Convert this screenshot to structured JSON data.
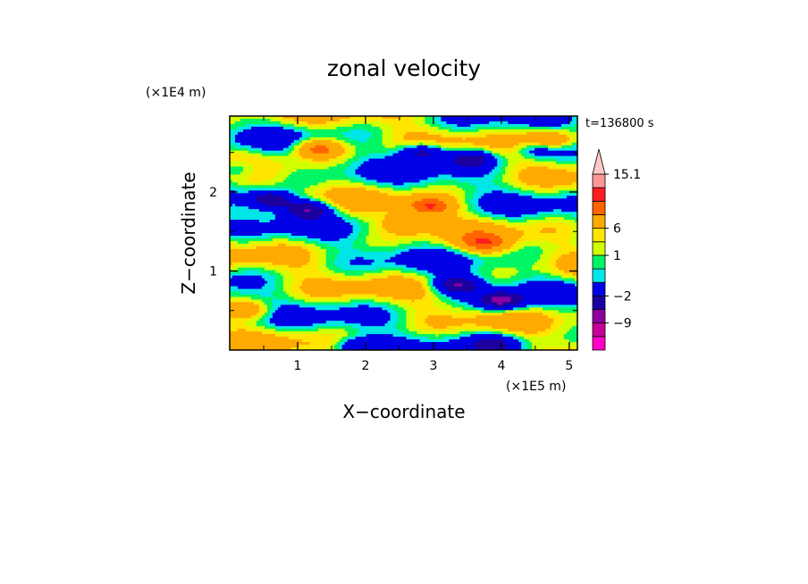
{
  "chart_data": {
    "type": "heatmap",
    "title": "zonal velocity",
    "xlabel": "X−coordinate",
    "ylabel": "Z−coordinate",
    "x_unit": "(×1E5 m)",
    "y_unit": "(×1E4 m)",
    "time_label": "t=136800 s",
    "xlim": [
      0,
      5.12
    ],
    "ylim": [
      0,
      2.96
    ],
    "xticks": [
      1,
      2,
      3,
      4,
      5
    ],
    "xtick_labels": [
      "1",
      "2",
      "3",
      "4",
      "5"
    ],
    "yticks": [
      1,
      2
    ],
    "ytick_labels": [
      "1",
      "2"
    ],
    "colorbar": {
      "levels": [
        -15,
        -12,
        -9,
        -6,
        -2,
        -1,
        0,
        1,
        2,
        6,
        9,
        12,
        15.1
      ],
      "colors": [
        "#ff00c8",
        "#c8009b",
        "#8c00a0",
        "#1e00a0",
        "#0000e6",
        "#00e6e6",
        "#00f564",
        "#d2ff00",
        "#ffe600",
        "#ffaa00",
        "#ff6400",
        "#ff1e1e",
        "#ff9696",
        "#ffc8c8"
      ],
      "tick_values": [
        15.1,
        6,
        1,
        -2,
        -9
      ],
      "tick_labels": [
        "15.1",
        "6",
        "1",
        "−2",
        "−9"
      ],
      "extend": "max"
    },
    "features": [
      {
        "x": 0.6,
        "z": 1.9,
        "value": -10
      },
      {
        "x": 1.15,
        "z": 1.78,
        "value": -9
      },
      {
        "x": 4.0,
        "z": 0.62,
        "value": -10
      },
      {
        "x": 3.35,
        "z": 0.82,
        "value": -9
      },
      {
        "x": 2.85,
        "z": 2.5,
        "value": -9
      },
      {
        "x": 3.55,
        "z": 2.42,
        "value": -8
      },
      {
        "x": 4.55,
        "z": 2.55,
        "value": -6
      },
      {
        "x": 1.3,
        "z": 2.55,
        "value": 8
      },
      {
        "x": 2.95,
        "z": 1.82,
        "value": 9
      },
      {
        "x": 3.75,
        "z": 1.35,
        "value": 7
      },
      {
        "x": 4.7,
        "z": 2.65,
        "value": 8
      },
      {
        "x": 0.3,
        "z": 0.5,
        "value": 5
      },
      {
        "x": 2.6,
        "z": 1.6,
        "value": 5
      },
      {
        "x": 1.9,
        "z": 0.05,
        "value": -6
      },
      {
        "x": 3.9,
        "z": 0.08,
        "value": -5
      },
      {
        "x": 0.1,
        "z": 2.3,
        "value": -5
      }
    ]
  }
}
